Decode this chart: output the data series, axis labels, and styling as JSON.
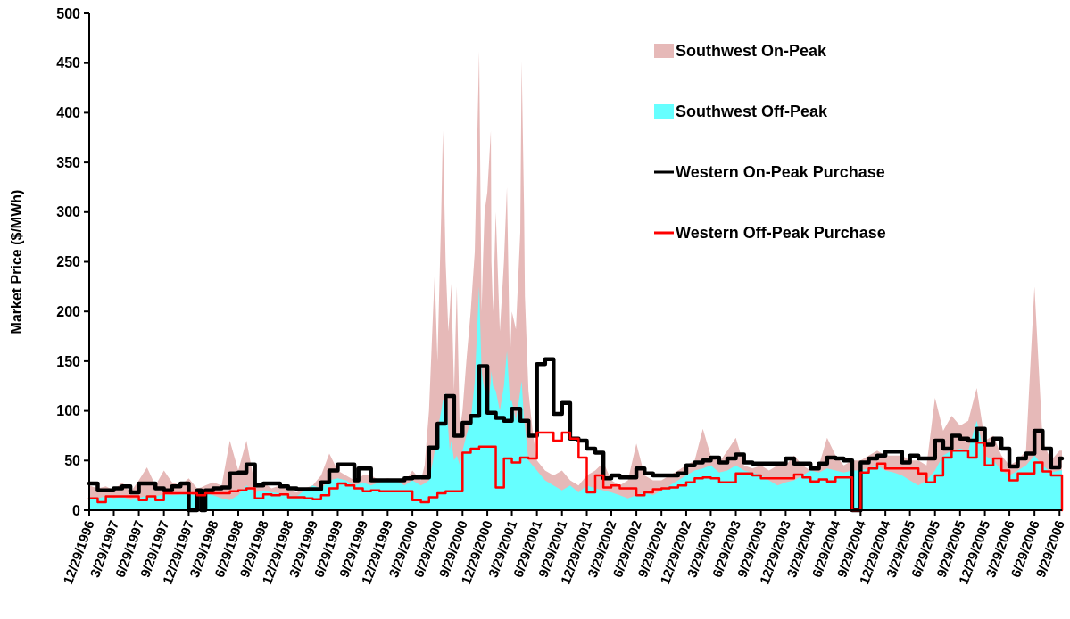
{
  "chart_data": {
    "type": "area",
    "ylabel": "Market Price ($/MWh)",
    "ylim": [
      0,
      500
    ],
    "yticks": [
      0,
      50,
      100,
      150,
      200,
      250,
      300,
      350,
      400,
      450,
      500
    ],
    "xlim": [
      "1996-12-29",
      "2006-10-08"
    ],
    "xticks": [
      {
        "value": "1996-12-29",
        "label": "12/29/1996"
      },
      {
        "value": "1997-03-29",
        "label": "3/29/1997"
      },
      {
        "value": "1997-06-29",
        "label": "6/29/1997"
      },
      {
        "value": "1997-09-29",
        "label": "9/29/1997"
      },
      {
        "value": "1997-12-29",
        "label": "12/29/1997"
      },
      {
        "value": "1998-03-29",
        "label": "3/29/1998"
      },
      {
        "value": "1998-06-29",
        "label": "6/29/1998"
      },
      {
        "value": "1998-09-29",
        "label": "9/29/1998"
      },
      {
        "value": "1998-12-29",
        "label": "12/29/1998"
      },
      {
        "value": "1999-03-29",
        "label": "3/29/1999"
      },
      {
        "value": "1999-06-29",
        "label": "6/29/1999"
      },
      {
        "value": "1999-09-29",
        "label": "9/29/1999"
      },
      {
        "value": "1999-12-29",
        "label": "12/29/1999"
      },
      {
        "value": "2000-03-29",
        "label": "3/29/2000"
      },
      {
        "value": "2000-06-29",
        "label": "6/29/2000"
      },
      {
        "value": "2000-09-29",
        "label": "9/29/2000"
      },
      {
        "value": "2000-12-29",
        "label": "12/29/2000"
      },
      {
        "value": "2001-03-29",
        "label": "3/29/2001"
      },
      {
        "value": "2001-06-29",
        "label": "6/29/2001"
      },
      {
        "value": "2001-09-29",
        "label": "9/29/2001"
      },
      {
        "value": "2001-12-29",
        "label": "12/29/2001"
      },
      {
        "value": "2002-03-29",
        "label": "3/29/2002"
      },
      {
        "value": "2002-06-29",
        "label": "6/29/2002"
      },
      {
        "value": "2002-09-29",
        "label": "9/29/2002"
      },
      {
        "value": "2002-12-29",
        "label": "12/29/2002"
      },
      {
        "value": "2003-03-29",
        "label": "3/29/2003"
      },
      {
        "value": "2003-06-29",
        "label": "6/29/2003"
      },
      {
        "value": "2003-09-29",
        "label": "9/29/2003"
      },
      {
        "value": "2003-12-29",
        "label": "12/29/2003"
      },
      {
        "value": "2004-03-29",
        "label": "3/29/2004"
      },
      {
        "value": "2004-06-29",
        "label": "6/29/2004"
      },
      {
        "value": "2004-09-29",
        "label": "9/29/2004"
      },
      {
        "value": "2004-12-29",
        "label": "12/29/2004"
      },
      {
        "value": "2005-03-29",
        "label": "3/29/2005"
      },
      {
        "value": "2005-06-29",
        "label": "6/29/2005"
      },
      {
        "value": "2005-09-29",
        "label": "9/29/2005"
      },
      {
        "value": "2005-12-29",
        "label": "12/29/2005"
      },
      {
        "value": "2006-03-29",
        "label": "3/29/2006"
      },
      {
        "value": "2006-06-29",
        "label": "6/29/2006"
      },
      {
        "value": "2006-09-29",
        "label": "9/29/2006"
      }
    ],
    "legend": "top right",
    "x": [
      "1996-12-29",
      "1997-01-29",
      "1997-02-28",
      "1997-03-29",
      "1997-04-29",
      "1997-05-29",
      "1997-06-29",
      "1997-07-29",
      "1997-08-29",
      "1997-09-29",
      "1997-10-29",
      "1997-11-29",
      "1997-12-29",
      "1998-01-29",
      "1998-02-13",
      "1998-02-28",
      "1998-03-29",
      "1998-04-29",
      "1998-05-29",
      "1998-06-29",
      "1998-07-29",
      "1998-08-29",
      "1998-09-29",
      "1998-10-29",
      "1998-11-29",
      "1998-12-29",
      "1999-01-29",
      "1999-02-28",
      "1999-03-29",
      "1999-04-29",
      "1999-05-29",
      "1999-06-29",
      "1999-07-29",
      "1999-08-29",
      "1999-09-13",
      "1999-09-29",
      "1999-10-29",
      "1999-11-29",
      "1999-12-29",
      "2000-01-29",
      "2000-02-29",
      "2000-03-29",
      "2000-04-29",
      "2000-05-13",
      "2000-05-29",
      "2000-06-13",
      "2000-06-19",
      "2000-06-29",
      "2000-07-13",
      "2000-07-19",
      "2000-07-29",
      "2000-08-08",
      "2000-08-13",
      "2000-08-19",
      "2000-08-29",
      "2000-09-08",
      "2000-09-19",
      "2000-09-29",
      "2000-10-13",
      "2000-10-29",
      "2000-11-13",
      "2000-11-29",
      "2000-12-08",
      "2000-12-13",
      "2000-12-19",
      "2000-12-29",
      "2001-01-11",
      "2001-01-13",
      "2001-01-19",
      "2001-01-29",
      "2001-02-13",
      "2001-02-28",
      "2001-03-11",
      "2001-03-22",
      "2001-03-29",
      "2001-04-13",
      "2001-04-29",
      "2001-05-04",
      "2001-05-13",
      "2001-05-16",
      "2001-05-29",
      "2001-06-13",
      "2001-06-29",
      "2001-07-29",
      "2001-08-29",
      "2001-09-29",
      "2001-10-29",
      "2001-11-29",
      "2001-12-29",
      "2002-01-29",
      "2002-02-28",
      "2002-03-29",
      "2002-04-29",
      "2002-05-29",
      "2002-06-29",
      "2002-07-29",
      "2002-08-29",
      "2002-09-29",
      "2002-10-29",
      "2002-11-29",
      "2002-12-29",
      "2003-01-29",
      "2003-02-28",
      "2003-03-29",
      "2003-04-29",
      "2003-05-29",
      "2003-06-29",
      "2003-07-29",
      "2003-08-29",
      "2003-09-29",
      "2003-10-29",
      "2003-11-29",
      "2003-12-29",
      "2004-01-29",
      "2004-02-29",
      "2004-03-29",
      "2004-04-29",
      "2004-05-29",
      "2004-06-29",
      "2004-07-29",
      "2004-08-29",
      "2004-09-29",
      "2004-10-29",
      "2004-11-29",
      "2004-12-29",
      "2005-01-29",
      "2005-02-28",
      "2005-03-29",
      "2005-04-29",
      "2005-05-29",
      "2005-06-29",
      "2005-07-29",
      "2005-08-29",
      "2005-09-29",
      "2005-10-29",
      "2005-11-29",
      "2005-12-29",
      "2006-01-29",
      "2006-02-28",
      "2006-03-29",
      "2006-04-29",
      "2006-05-29",
      "2006-06-29",
      "2006-07-29",
      "2006-08-29",
      "2006-09-29",
      "2006-10-08"
    ],
    "series": [
      {
        "name": "Southwest On-Peak",
        "color": "#e6b9b8",
        "values": [
          25,
          22,
          24,
          20,
          28,
          18,
          30,
          43,
          25,
          40,
          28,
          25,
          32,
          22,
          23,
          25,
          28,
          25,
          70,
          40,
          70,
          25,
          28,
          22,
          25,
          20,
          18,
          22,
          25,
          35,
          57,
          40,
          35,
          30,
          32,
          35,
          35,
          30,
          32,
          30,
          28,
          40,
          30,
          45,
          100,
          200,
          238,
          150,
          300,
          382,
          250,
          180,
          200,
          228,
          120,
          225,
          80,
          100,
          150,
          200,
          260,
          462,
          200,
          250,
          300,
          320,
          382,
          250,
          200,
          300,
          180,
          250,
          325,
          150,
          200,
          182,
          280,
          452,
          300,
          215,
          120,
          80,
          50,
          40,
          35,
          40,
          30,
          25,
          35,
          40,
          48,
          30,
          25,
          30,
          67,
          35,
          30,
          30,
          35,
          40,
          45,
          50,
          82,
          55,
          48,
          60,
          73,
          45,
          42,
          45,
          40,
          45,
          45,
          55,
          45,
          40,
          45,
          73,
          55,
          45,
          50,
          50,
          55,
          60,
          55,
          55,
          55,
          50,
          50,
          45,
          113,
          80,
          95,
          85,
          90,
          123,
          70,
          75,
          55,
          45,
          50,
          60,
          225,
          70,
          50,
          60,
          60
        ]
      },
      {
        "name": "Southwest Off-Peak",
        "color": "#66ffff",
        "values": [
          13,
          12,
          14,
          12,
          14,
          10,
          12,
          15,
          14,
          16,
          15,
          16,
          17,
          14,
          15,
          18,
          15,
          12,
          10,
          15,
          25,
          18,
          20,
          18,
          17,
          15,
          14,
          20,
          25,
          22,
          30,
          32,
          30,
          25,
          26,
          28,
          25,
          28,
          30,
          30,
          25,
          30,
          25,
          27,
          30,
          50,
          60,
          80,
          100,
          110,
          118,
          80,
          60,
          70,
          50,
          55,
          45,
          60,
          75,
          90,
          130,
          225,
          140,
          130,
          120,
          100,
          130,
          140,
          125,
          120,
          100,
          125,
          160,
          110,
          110,
          90,
          120,
          130,
          90,
          85,
          50,
          45,
          40,
          30,
          25,
          20,
          25,
          18,
          25,
          22,
          20,
          18,
          15,
          12,
          15,
          18,
          15,
          20,
          25,
          30,
          35,
          40,
          42,
          45,
          38,
          40,
          45,
          40,
          38,
          35,
          30,
          25,
          28,
          30,
          35,
          40,
          38,
          42,
          40,
          38,
          40,
          40,
          42,
          45,
          40,
          38,
          35,
          30,
          25,
          30,
          40,
          55,
          60,
          62,
          60,
          90,
          55,
          50,
          40,
          35,
          40,
          45,
          55,
          45,
          38,
          40,
          40
        ]
      },
      {
        "name": "Western On-Peak Purchase",
        "type": "step",
        "color": "#000000",
        "values": [
          27,
          20,
          20,
          22,
          24,
          18,
          27,
          27,
          22,
          20,
          24,
          27,
          0,
          20,
          0,
          20,
          22,
          23,
          37,
          38,
          46,
          25,
          27,
          27,
          24,
          22,
          21,
          21,
          21,
          28,
          40,
          46,
          46,
          30,
          42,
          42,
          30,
          30,
          30,
          30,
          32,
          33,
          33,
          33,
          63,
          63,
          63,
          87,
          87,
          87,
          115,
          115,
          115,
          115,
          75,
          75,
          75,
          88,
          88,
          95,
          95,
          145,
          145,
          145,
          145,
          98,
          98,
          98,
          98,
          93,
          93,
          90,
          90,
          90,
          102,
          102,
          90,
          90,
          90,
          90,
          75,
          75,
          147,
          152,
          97,
          108,
          72,
          70,
          62,
          58,
          32,
          35,
          33,
          33,
          42,
          37,
          35,
          35,
          35,
          37,
          45,
          48,
          50,
          53,
          48,
          52,
          56,
          48,
          47,
          47,
          47,
          47,
          52,
          47,
          47,
          42,
          47,
          53,
          52,
          50,
          0,
          48,
          52,
          55,
          59,
          59,
          48,
          55,
          52,
          52,
          70,
          62,
          75,
          72,
          70,
          82,
          66,
          72,
          62,
          44,
          52,
          57,
          80,
          62,
          43,
          52,
          52
        ]
      },
      {
        "name": "Western Off-Peak Purchase",
        "type": "step",
        "color": "#ff0000",
        "values": [
          12,
          8,
          14,
          14,
          14,
          14,
          10,
          14,
          10,
          17,
          17,
          17,
          17,
          15,
          15,
          17,
          17,
          17,
          19,
          20,
          22,
          12,
          16,
          15,
          16,
          13,
          13,
          12,
          11,
          15,
          22,
          27,
          25,
          22,
          22,
          19,
          20,
          19,
          19,
          19,
          19,
          10,
          8,
          8,
          13,
          13,
          13,
          17,
          17,
          17,
          19,
          19,
          19,
          19,
          19,
          19,
          19,
          58,
          58,
          62,
          62,
          64,
          64,
          64,
          64,
          64,
          64,
          64,
          64,
          23,
          23,
          52,
          52,
          52,
          48,
          48,
          53,
          53,
          53,
          53,
          52,
          52,
          78,
          78,
          70,
          78,
          72,
          53,
          18,
          35,
          23,
          25,
          22,
          22,
          15,
          18,
          21,
          22,
          23,
          25,
          28,
          32,
          33,
          32,
          28,
          28,
          37,
          37,
          35,
          32,
          32,
          32,
          32,
          36,
          33,
          29,
          31,
          29,
          33,
          33,
          0,
          38,
          42,
          47,
          42,
          42,
          42,
          42,
          37,
          28,
          35,
          53,
          60,
          60,
          53,
          68,
          45,
          52,
          40,
          30,
          37,
          37,
          48,
          39,
          35,
          35,
          0
        ]
      }
    ]
  }
}
